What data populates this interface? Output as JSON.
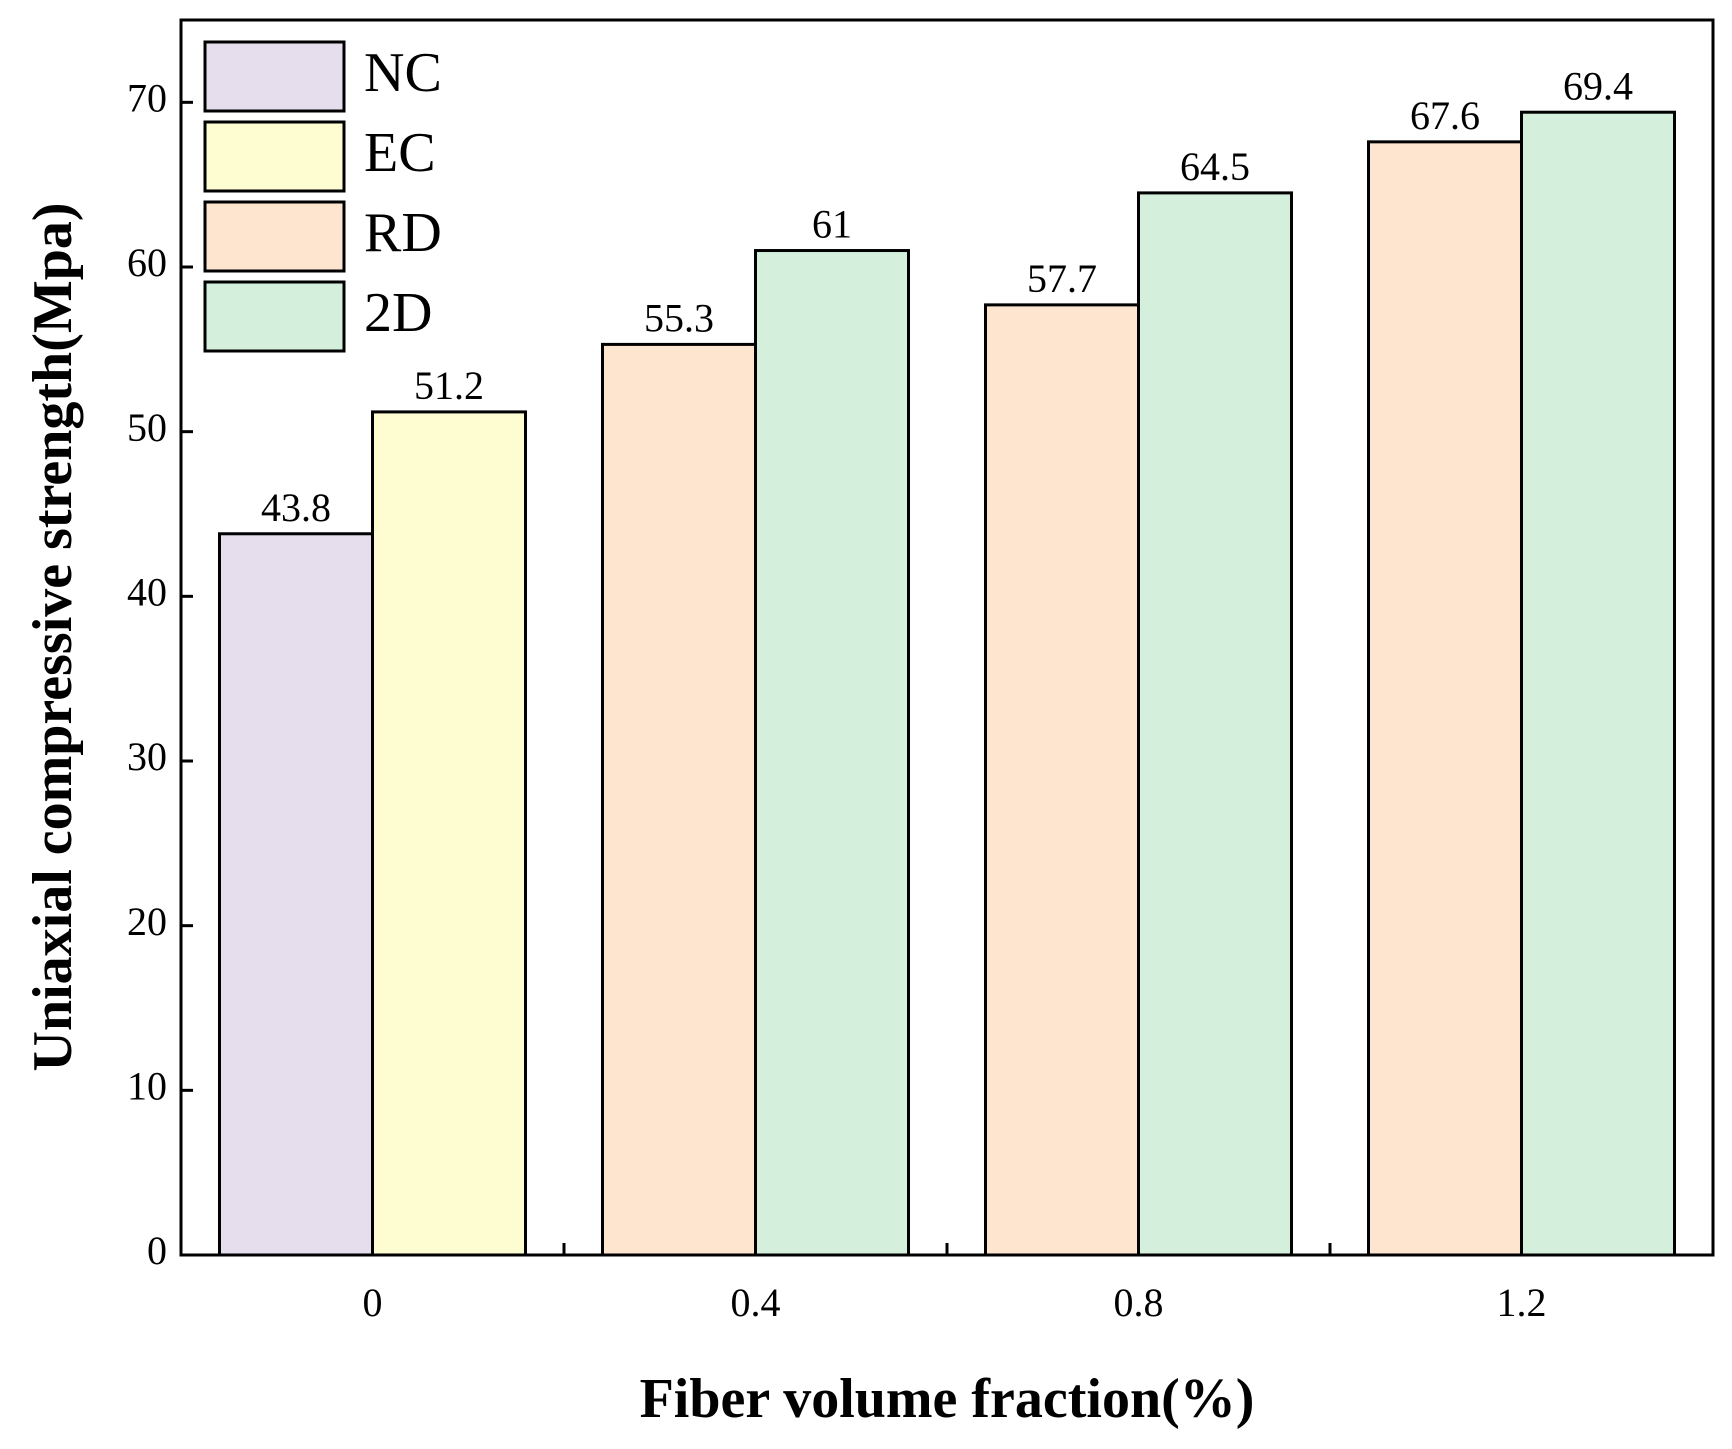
{
  "chart_data": {
    "type": "bar",
    "x_label": "Fiber volume fraction(%)",
    "y_label": "Uniaxial compressive strength(Mpa)",
    "categories": [
      "0",
      "0.4",
      "0.8",
      "1.2"
    ],
    "series": [
      {
        "name": "NC",
        "color": "#e6dded",
        "values": [
          43.8,
          null,
          null,
          null
        ]
      },
      {
        "name": "EC",
        "color": "#fdfdd1",
        "values": [
          51.2,
          null,
          null,
          null
        ]
      },
      {
        "name": "RD",
        "color": "#fde5d0",
        "values": [
          null,
          55.3,
          57.7,
          67.6
        ]
      },
      {
        "name": "2D",
        "color": "#d4f0dc",
        "values": [
          null,
          61,
          64.5,
          69.4
        ]
      }
    ],
    "ylim": [
      0,
      75
    ],
    "yticks": [
      0,
      10,
      20,
      30,
      40,
      50,
      60,
      70
    ],
    "legend": "upper-left"
  }
}
